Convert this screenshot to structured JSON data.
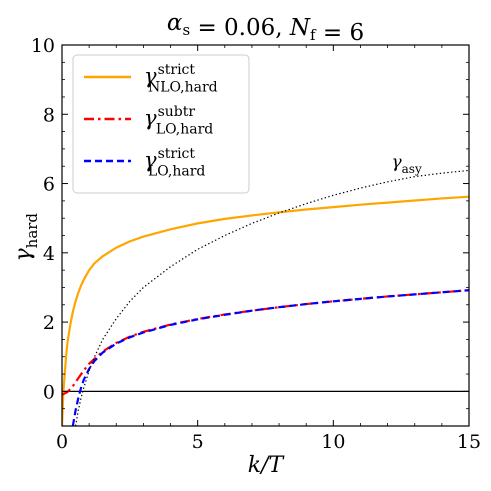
{
  "chart_data": {
    "type": "line",
    "title": {
      "base": "α",
      "base_sub": "s",
      "eq1": " = 0.06, ",
      "base2": "N",
      "base2_sub": "f",
      "eq2": " = 6"
    },
    "xlabel": "k/T",
    "ylabel": {
      "base": "γ",
      "sub": "hard"
    },
    "xlim": [
      0,
      15
    ],
    "ylim": [
      -1,
      10
    ],
    "xticks": [
      0,
      5,
      10,
      15
    ],
    "yticks": [
      0,
      2,
      4,
      6,
      8,
      10
    ],
    "grid": false,
    "legend": "top-left",
    "hline": {
      "y": 0,
      "color": "#000000"
    },
    "series": [
      {
        "label": {
          "base": "γ",
          "sup": "strict",
          "sub": "NLO,hard"
        },
        "color": "#FFA500",
        "dash": "solid",
        "width": 2.2,
        "x": [
          0.0,
          0.05,
          0.1,
          0.15,
          0.2,
          0.3,
          0.4,
          0.5,
          0.6,
          0.7,
          0.8,
          1.0,
          1.2,
          1.5,
          2.0,
          2.5,
          3.0,
          4.0,
          5.0,
          6.0,
          7.0,
          8.0,
          9.0,
          10.0,
          11.0,
          12.0,
          13.0,
          14.0,
          15.0
        ],
        "y": [
          -1.0,
          0.0,
          0.5,
          1.0,
          1.4,
          1.9,
          2.3,
          2.6,
          2.85,
          3.05,
          3.22,
          3.5,
          3.7,
          3.9,
          4.15,
          4.33,
          4.47,
          4.68,
          4.85,
          4.98,
          5.08,
          5.17,
          5.25,
          5.32,
          5.39,
          5.45,
          5.51,
          5.57,
          5.62
        ]
      },
      {
        "label": {
          "base": "γ",
          "sup": "subtr",
          "sub": "LO,hard"
        },
        "color": "#FF0000",
        "dash": "dashdot",
        "width": 2.2,
        "x": [
          0.0,
          0.2,
          0.4,
          0.6,
          0.8,
          1.0,
          1.5,
          2.0,
          2.5,
          3.0,
          4.0,
          5.0,
          6.0,
          7.0,
          8.0,
          9.0,
          10.0,
          11.0,
          12.0,
          13.0,
          14.0,
          15.0
        ],
        "y": [
          -0.1,
          -0.02,
          0.15,
          0.38,
          0.6,
          0.8,
          1.15,
          1.4,
          1.58,
          1.72,
          1.93,
          2.09,
          2.22,
          2.33,
          2.43,
          2.52,
          2.6,
          2.67,
          2.74,
          2.8,
          2.86,
          2.92
        ]
      },
      {
        "label": {
          "base": "γ",
          "sup": "strict",
          "sub": "LO,hard"
        },
        "color": "#0000FF",
        "dash": "dashed",
        "width": 2.2,
        "x": [
          0.4,
          0.5,
          0.6,
          0.7,
          0.8,
          1.0,
          1.2,
          1.5,
          2.0,
          2.5,
          3.0,
          4.0,
          5.0,
          6.0,
          7.0,
          8.0,
          9.0,
          10.0,
          11.0,
          12.0,
          13.0,
          14.0,
          15.0
        ],
        "y": [
          -1.0,
          -0.55,
          -0.2,
          0.1,
          0.33,
          0.65,
          0.88,
          1.12,
          1.38,
          1.56,
          1.7,
          1.92,
          2.08,
          2.21,
          2.33,
          2.43,
          2.52,
          2.6,
          2.67,
          2.74,
          2.8,
          2.86,
          2.92
        ]
      },
      {
        "label": {
          "base": "γ",
          "sub": "asy"
        },
        "color": "#000000",
        "dash": "dotted",
        "width": 1.2,
        "x": [
          0.5,
          0.6,
          0.7,
          0.8,
          1.0,
          1.2,
          1.5,
          2.0,
          2.5,
          3.0,
          4.0,
          5.0,
          6.0,
          7.0,
          8.0,
          9.0,
          10.0,
          11.0,
          12.0,
          13.0,
          14.0,
          15.0
        ],
        "y": [
          -1.0,
          -0.55,
          -0.2,
          0.1,
          0.6,
          1.0,
          1.5,
          2.1,
          2.6,
          3.0,
          3.6,
          4.1,
          4.5,
          4.85,
          5.15,
          5.42,
          5.66,
          5.87,
          6.05,
          6.2,
          6.3,
          6.38
        ]
      }
    ],
    "annotations": [
      {
        "base": "γ",
        "sub": "asy",
        "x": 12.7,
        "y": 6.35
      }
    ]
  }
}
